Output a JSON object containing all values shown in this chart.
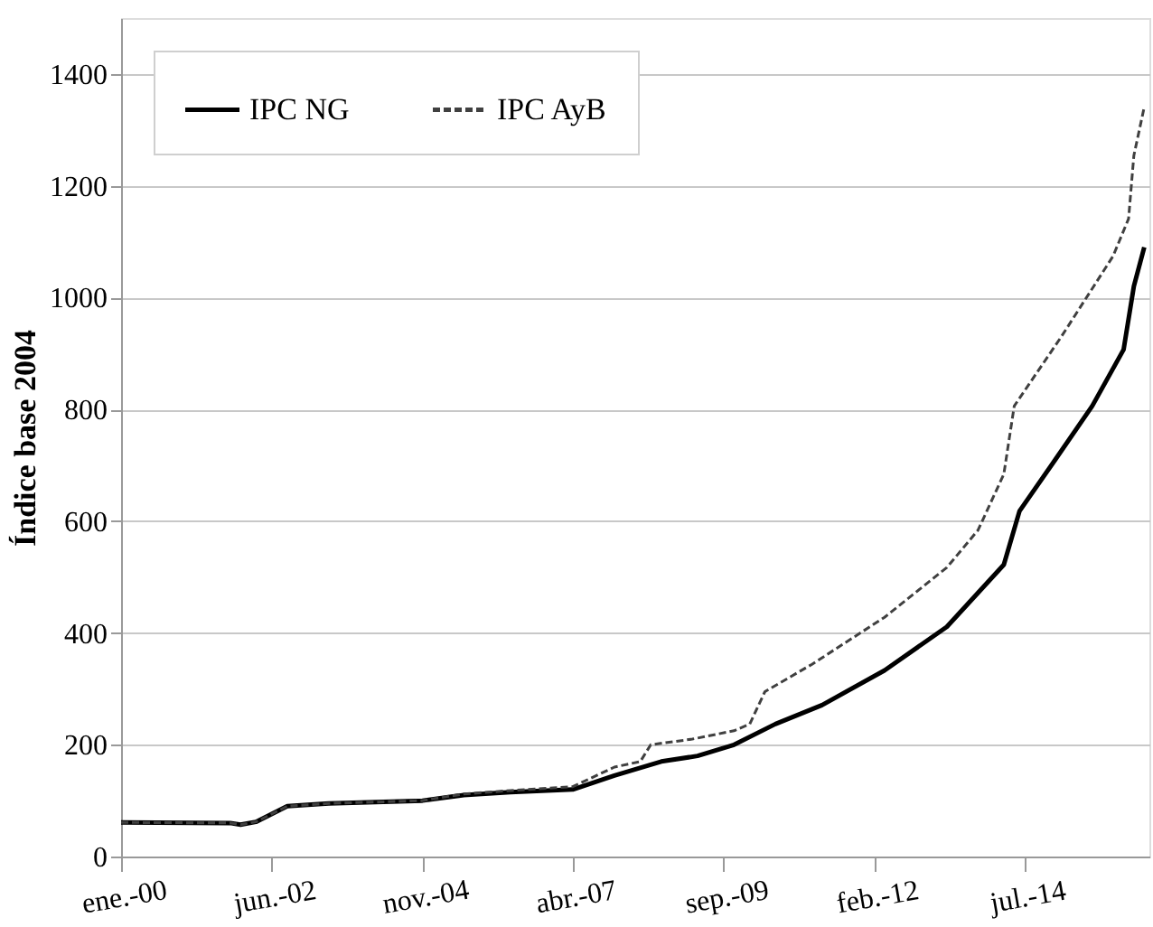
{
  "chart_data": {
    "type": "line",
    "ylabel": "Índice base 2004",
    "xlim": [
      "2000-01-01",
      "2016-07-01"
    ],
    "xticks": [
      {
        "value": "2000-01-01",
        "label": "ene.-00"
      },
      {
        "value": "2002-06-01",
        "label": "jun.-02"
      },
      {
        "value": "2004-11-01",
        "label": "nov.-04"
      },
      {
        "value": "2007-04-01",
        "label": "abr.-07"
      },
      {
        "value": "2009-09-01",
        "label": "sep.-09"
      },
      {
        "value": "2012-02-01",
        "label": "feb.-12"
      },
      {
        "value": "2014-07-01",
        "label": "jul.-14"
      }
    ],
    "ylim": [
      0,
      1500
    ],
    "yticks": [
      0,
      200,
      400,
      600,
      800,
      1000,
      1200,
      1400
    ],
    "grid": "y",
    "legend": "top left",
    "series": [
      {
        "name": "IPC NG",
        "color": "#000000",
        "line_style": "solid",
        "x": [
          "2000-01-01",
          "2001-10-01",
          "2001-12-01",
          "2002-03-01",
          "2002-09-01",
          "2003-05-01",
          "2004-11-01",
          "2005-07-01",
          "2006-04-01",
          "2007-04-01",
          "2007-12-01",
          "2008-09-01",
          "2009-04-01",
          "2009-11-01",
          "2010-07-01",
          "2011-04-01",
          "2012-04-01",
          "2013-04-01",
          "2014-03-01",
          "2014-06-01",
          "2015-01-01",
          "2015-08-01",
          "2016-02-01",
          "2016-04-01",
          "2016-06-01"
        ],
        "values": [
          61,
          60,
          57,
          62,
          90,
          95,
          100,
          110,
          115,
          120,
          145,
          170,
          180,
          200,
          237,
          271,
          333,
          411,
          522,
          618,
          712,
          806,
          907,
          1020,
          1090
        ]
      },
      {
        "name": "IPC AyB",
        "color": "#404040",
        "line_style": "dashed",
        "x": [
          "2000-01-01",
          "2001-10-01",
          "2001-12-01",
          "2002-03-01",
          "2002-09-01",
          "2003-05-01",
          "2004-11-01",
          "2005-07-01",
          "2006-04-01",
          "2007-04-01",
          "2007-12-01",
          "2008-05-01",
          "2008-07-01",
          "2009-03-01",
          "2009-11-01",
          "2010-02-01",
          "2010-05-01",
          "2011-02-01",
          "2012-04-01",
          "2013-04-01",
          "2013-10-01",
          "2014-03-01",
          "2014-05-01",
          "2015-02-01",
          "2015-12-01",
          "2016-03-01",
          "2016-04-01",
          "2016-06-01"
        ],
        "values": [
          61,
          60,
          57,
          62,
          90,
          95,
          100,
          112,
          118,
          125,
          160,
          170,
          200,
          210,
          225,
          237,
          295,
          344,
          428,
          517,
          584,
          684,
          806,
          930,
          1074,
          1141,
          1254,
          1341
        ]
      }
    ]
  }
}
